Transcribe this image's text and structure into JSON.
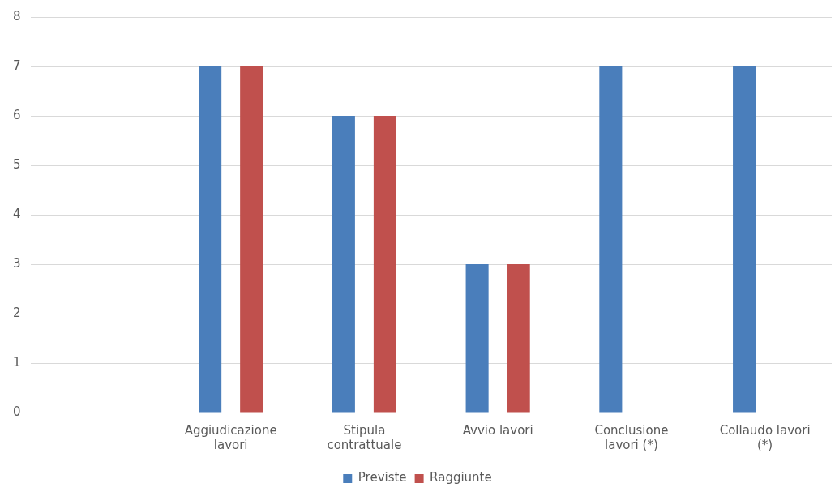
{
  "chart_data": {
    "type": "bar",
    "categories": [
      null,
      "Aggiudicazione lavori",
      "Stipula contrattuale",
      "Avvio lavori",
      "Conclusione lavori (*)",
      "Collaudo lavori (*)"
    ],
    "series": [
      {
        "name": "Previste",
        "color": "#4a7ebb",
        "values": [
          null,
          7,
          6,
          3,
          7,
          7
        ]
      },
      {
        "name": "Raggiunte",
        "color": "#c0504d",
        "values": [
          null,
          7,
          6,
          3,
          null,
          null
        ]
      }
    ],
    "ylim": [
      0,
      8
    ],
    "yticks": [
      0,
      1,
      2,
      3,
      4,
      5,
      6,
      7,
      8
    ],
    "grid": "y",
    "legend": "bottom"
  }
}
